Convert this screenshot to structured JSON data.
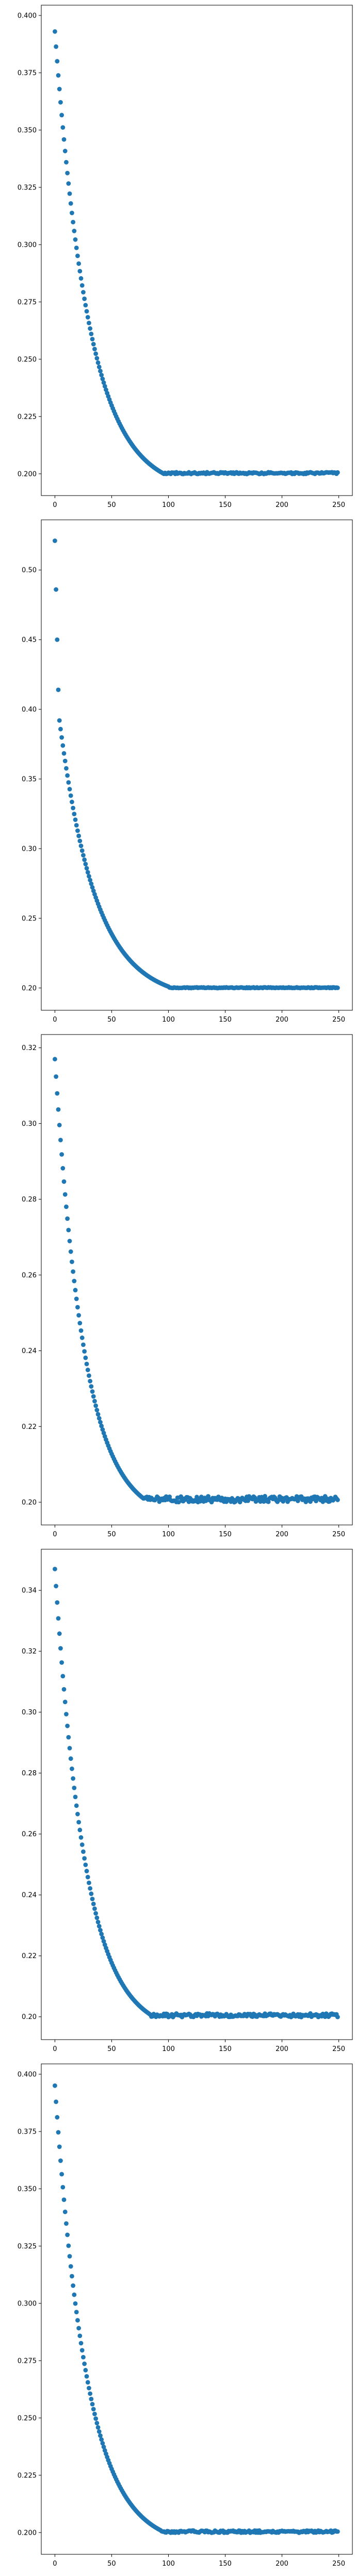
{
  "figure": {
    "point_color": "#1f77b4"
  },
  "chart_data": [
    {
      "type": "scatter",
      "title": "",
      "xlabel": "",
      "ylabel": "",
      "xlim": [
        -12,
        262
      ],
      "ylim": [
        0.1905,
        0.4045
      ],
      "xticks": [
        0,
        50,
        100,
        150,
        200,
        250
      ],
      "xtick_labels": [
        "0",
        "50",
        "100",
        "150",
        "200",
        "250"
      ],
      "yticks": [
        0.2,
        0.225,
        0.25,
        0.275,
        0.3,
        0.325,
        0.35,
        0.375,
        0.4
      ],
      "ytick_labels": [
        "0.200",
        "0.225",
        "0.250",
        "0.275",
        "0.300",
        "0.325",
        "0.350",
        "0.375",
        "0.400"
      ],
      "grid": false,
      "legend": "none",
      "series": [
        {
          "segments": [
            {
              "kind": "decay",
              "x_start": 0,
              "x_end": 96,
              "y_start": 0.393,
              "y_end": 0.2,
              "curvature": 3.2
            },
            {
              "kind": "flat",
              "x_start": 97,
              "x_end": 249,
              "y": 0.2003,
              "jitter": 0.0004
            }
          ]
        }
      ]
    },
    {
      "type": "scatter",
      "title": "",
      "xlabel": "",
      "ylabel": "",
      "xlim": [
        -12,
        262
      ],
      "ylim": [
        0.184,
        0.536
      ],
      "xticks": [
        0,
        50,
        100,
        150,
        200,
        250
      ],
      "xtick_labels": [
        "0",
        "50",
        "100",
        "150",
        "200",
        "250"
      ],
      "yticks": [
        0.2,
        0.25,
        0.3,
        0.35,
        0.4,
        0.45,
        0.5
      ],
      "ytick_labels": [
        "0.20",
        "0.25",
        "0.30",
        "0.35",
        "0.40",
        "0.45",
        "0.50"
      ],
      "grid": false,
      "legend": "none",
      "series": [
        {
          "segments": [
            {
              "kind": "points",
              "x": [
                0,
                1,
                2,
                3
              ],
              "y": [
                0.521,
                0.486,
                0.45,
                0.414
              ]
            },
            {
              "kind": "decay",
              "x_start": 4,
              "x_end": 100,
              "y_start": 0.392,
              "y_end": 0.201,
              "curvature": 3.0
            },
            {
              "kind": "flat",
              "x_start": 101,
              "x_end": 249,
              "y": 0.2002,
              "jitter": 0.0003
            }
          ]
        }
      ]
    },
    {
      "type": "scatter",
      "title": "",
      "xlabel": "",
      "ylabel": "",
      "xlim": [
        -12,
        262
      ],
      "ylim": [
        0.194,
        0.3235
      ],
      "xticks": [
        0,
        50,
        100,
        150,
        200,
        250
      ],
      "xtick_labels": [
        "0",
        "50",
        "100",
        "150",
        "200",
        "250"
      ],
      "yticks": [
        0.2,
        0.22,
        0.24,
        0.26,
        0.28,
        0.3,
        0.32
      ],
      "ytick_labels": [
        "0.20",
        "0.22",
        "0.24",
        "0.26",
        "0.28",
        "0.30",
        "0.32"
      ],
      "grid": false,
      "legend": "none",
      "series": [
        {
          "segments": [
            {
              "kind": "decay",
              "x_start": 0,
              "x_end": 78,
              "y_start": 0.317,
              "y_end": 0.201,
              "curvature": 3.0
            },
            {
              "kind": "flat",
              "x_start": 79,
              "x_end": 249,
              "y": 0.2008,
              "jitter": 0.0008
            }
          ]
        }
      ]
    },
    {
      "type": "scatter",
      "title": "",
      "xlabel": "",
      "ylabel": "",
      "xlim": [
        -12,
        262
      ],
      "ylim": [
        0.1925,
        0.3535
      ],
      "xticks": [
        0,
        50,
        100,
        150,
        200,
        250
      ],
      "xtick_labels": [
        "0",
        "50",
        "100",
        "150",
        "200",
        "250"
      ],
      "yticks": [
        0.2,
        0.22,
        0.24,
        0.26,
        0.28,
        0.3,
        0.32,
        0.34
      ],
      "ytick_labels": [
        "0.20",
        "0.22",
        "0.24",
        "0.26",
        "0.28",
        "0.30",
        "0.32",
        "0.34"
      ],
      "grid": false,
      "legend": "none",
      "series": [
        {
          "segments": [
            {
              "kind": "decay",
              "x_start": 0,
              "x_end": 83,
              "y_start": 0.347,
              "y_end": 0.201,
              "curvature": 3.1
            },
            {
              "kind": "flat",
              "x_start": 84,
              "x_end": 249,
              "y": 0.2005,
              "jitter": 0.0006
            }
          ]
        }
      ]
    },
    {
      "type": "scatter",
      "title": "",
      "xlabel": "",
      "ylabel": "",
      "xlim": [
        -12,
        262
      ],
      "ylim": [
        0.1905,
        0.4045
      ],
      "xticks": [
        0,
        50,
        100,
        150,
        200,
        250
      ],
      "xtick_labels": [
        "0",
        "50",
        "100",
        "150",
        "200",
        "250"
      ],
      "yticks": [
        0.2,
        0.225,
        0.25,
        0.275,
        0.3,
        0.325,
        0.35,
        0.375,
        0.4
      ],
      "ytick_labels": [
        "0.200",
        "0.225",
        "0.250",
        "0.275",
        "0.300",
        "0.325",
        "0.350",
        "0.375",
        "0.400"
      ],
      "grid": false,
      "legend": "none",
      "series": [
        {
          "segments": [
            {
              "kind": "decay",
              "x_start": 0,
              "x_end": 93,
              "y_start": 0.395,
              "y_end": 0.201,
              "curvature": 3.3
            },
            {
              "kind": "flat",
              "x_start": 94,
              "x_end": 249,
              "y": 0.2004,
              "jitter": 0.0005
            }
          ]
        }
      ]
    }
  ]
}
